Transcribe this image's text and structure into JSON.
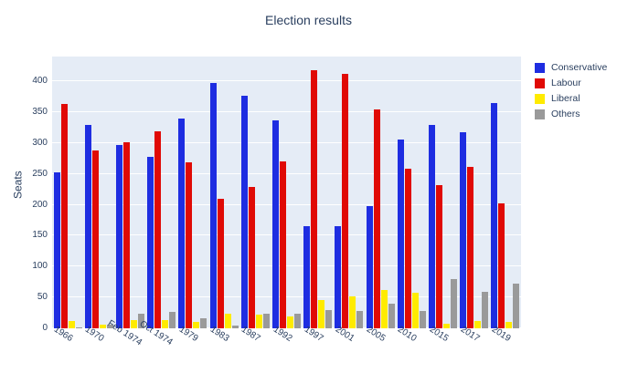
{
  "title": "Election results",
  "chart_data": {
    "type": "bar",
    "title": "Election results",
    "xlabel": "",
    "ylabel": "Seats",
    "grid": true,
    "legend_position": "right",
    "plot_bg_color": "#e5ecf6",
    "grid_color": "#ffffff",
    "text_color": "#2a3f5f",
    "ylim": [
      0,
      440
    ],
    "yticks": [
      0,
      50,
      100,
      150,
      200,
      250,
      300,
      350,
      400
    ],
    "categories": [
      "1966",
      "1970",
      "Feb 1974",
      "Oct 1974",
      "1979",
      "1983",
      "1987",
      "1992",
      "1997",
      "2001",
      "2005",
      "2010",
      "2015",
      "2017",
      "2019"
    ],
    "series": [
      {
        "name": "Conservative",
        "color": "#1e2de1",
        "values": [
          253,
          330,
          297,
          277,
          339,
          397,
          376,
          336,
          165,
          166,
          198,
          306,
          330,
          317,
          365
        ]
      },
      {
        "name": "Labour",
        "color": "#e00a05",
        "values": [
          364,
          288,
          301,
          319,
          269,
          209,
          229,
          271,
          418,
          412,
          355,
          258,
          232,
          262,
          202
        ]
      },
      {
        "name": "Liberal",
        "color": "#ffeb00",
        "values": [
          12,
          6,
          14,
          13,
          11,
          23,
          22,
          20,
          46,
          52,
          62,
          57,
          8,
          12,
          11
        ]
      },
      {
        "name": "Others",
        "color": "#9a9a9a",
        "values": [
          2,
          6,
          23,
          26,
          16,
          5,
          23,
          24,
          30,
          28,
          40,
          28,
          80,
          59,
          72
        ]
      }
    ]
  }
}
